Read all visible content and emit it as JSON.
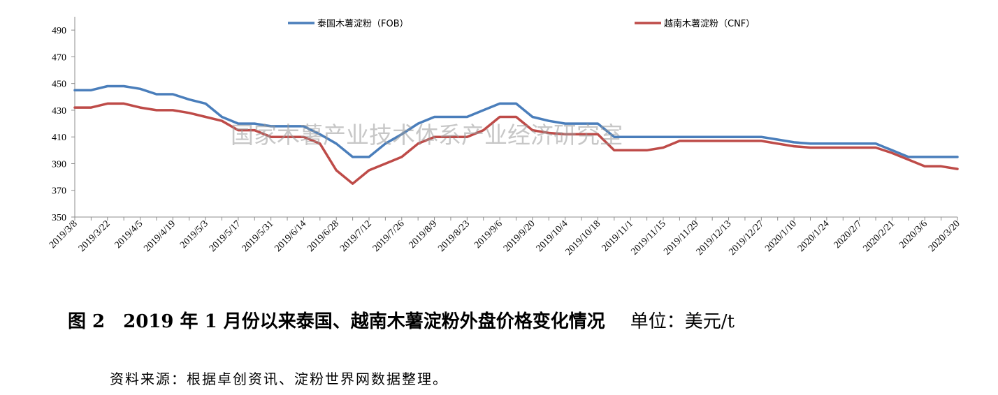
{
  "chart_data": {
    "type": "line",
    "title": "",
    "xlabel": "",
    "ylabel": "",
    "ylim": [
      350,
      500
    ],
    "yticks": [
      350,
      370,
      390,
      410,
      430,
      450,
      470,
      490
    ],
    "grid": false,
    "legend_position": "top",
    "x_tick_labels": [
      "2019/3/8",
      "2019/3/22",
      "2019/4/5",
      "2019/4/19",
      "2019/5/3",
      "2019/5/17",
      "2019/5/31",
      "2019/6/14",
      "2019/6/28",
      "2019/7/12",
      "2019/7/26",
      "2019/8/9",
      "2019/8/23",
      "2019/9/6",
      "2019/9/20",
      "2019/10/4",
      "2019/10/18",
      "2019/11/1",
      "2019/11/15",
      "2019/11/29",
      "2019/12/13",
      "2019/12/27",
      "2020/1/10",
      "2020/1/24",
      "2020/2/7",
      "2020/2/21",
      "2020/3/6",
      "2020/3/20"
    ],
    "x": [
      "2019/3/8",
      "2019/3/15",
      "2019/3/22",
      "2019/3/29",
      "2019/4/5",
      "2019/4/12",
      "2019/4/19",
      "2019/4/26",
      "2019/5/3",
      "2019/5/10",
      "2019/5/17",
      "2019/5/24",
      "2019/5/31",
      "2019/6/7",
      "2019/6/14",
      "2019/6/21",
      "2019/6/28",
      "2019/7/5",
      "2019/7/12",
      "2019/7/19",
      "2019/7/26",
      "2019/8/2",
      "2019/8/9",
      "2019/8/16",
      "2019/8/23",
      "2019/8/30",
      "2019/9/6",
      "2019/9/13",
      "2019/9/20",
      "2019/9/27",
      "2019/10/4",
      "2019/10/11",
      "2019/10/18",
      "2019/10/25",
      "2019/11/1",
      "2019/11/8",
      "2019/11/15",
      "2019/11/22",
      "2019/11/29",
      "2019/12/6",
      "2019/12/13",
      "2019/12/20",
      "2019/12/27",
      "2020/1/3",
      "2020/1/10",
      "2020/1/17",
      "2020/1/24",
      "2020/1/31",
      "2020/2/7",
      "2020/2/14",
      "2020/2/21",
      "2020/2/28",
      "2020/3/6",
      "2020/3/13",
      "2020/3/20"
    ],
    "series": [
      {
        "name": "泰国木薯淀粉（FOB）",
        "color": "#4a7ebb",
        "values": [
          445,
          445,
          448,
          448,
          446,
          442,
          442,
          438,
          435,
          425,
          420,
          420,
          418,
          418,
          418,
          412,
          405,
          395,
          395,
          405,
          412,
          420,
          425,
          425,
          425,
          430,
          435,
          435,
          425,
          422,
          420,
          420,
          420,
          410,
          410,
          410,
          410,
          410,
          410,
          410,
          410,
          410,
          410,
          408,
          406,
          405,
          405,
          405,
          405,
          405,
          400,
          395,
          395,
          395,
          395
        ]
      },
      {
        "name": "越南木薯淀粉（CNF）",
        "color": "#be4b48",
        "values": [
          432,
          432,
          435,
          435,
          432,
          430,
          430,
          428,
          425,
          422,
          415,
          415,
          410,
          410,
          410,
          405,
          385,
          375,
          385,
          390,
          395,
          405,
          410,
          410,
          410,
          415,
          425,
          425,
          415,
          413,
          412,
          412,
          412,
          400,
          400,
          400,
          402,
          407,
          407,
          407,
          407,
          407,
          407,
          405,
          403,
          402,
          402,
          402,
          402,
          402,
          398,
          393,
          388,
          388,
          386
        ]
      }
    ]
  },
  "watermark": "国家木薯产业技术体系产业经济研究室",
  "caption": {
    "label": "图 2　2019 年 1 月份以来泰国、越南木薯淀粉外盘价格变化情况",
    "unit": "单位：美元/t"
  },
  "source": "资料来源：根据卓创资讯、淀粉世界网数据整理。"
}
